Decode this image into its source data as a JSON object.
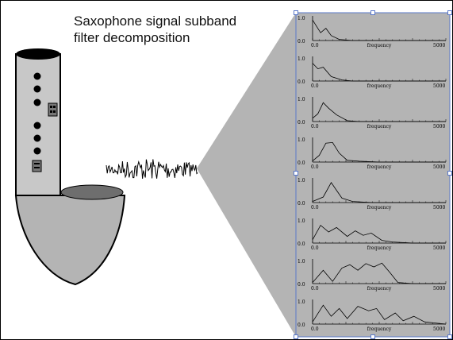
{
  "caption": "Saxophone signal subband\nfilter decomposition",
  "panel": {
    "y_top_label": "1.0",
    "y_bottom_label": "0.0",
    "x_left_label": "0.0",
    "x_right_label": "5000",
    "x_axis_label": "frequency",
    "background_color": "#b4b4b4",
    "selection_color": "#5a78c8"
  },
  "saxophone": {
    "tube_color": "#c8c8c8",
    "bell_color": "#b4b4b4",
    "opening_color": "#6e6e6e"
  },
  "wave_color": "#000000"
}
